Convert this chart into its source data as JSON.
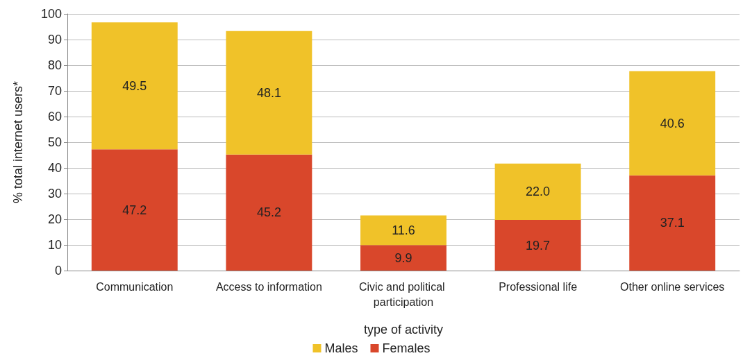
{
  "chart_data": {
    "type": "bar",
    "stacked": true,
    "xlabel": "type of activity",
    "ylabel": "% total internet users*",
    "categories": [
      "Communication",
      "Access to information",
      "Civic and political participation",
      "Professional life",
      "Other online services"
    ],
    "series": [
      {
        "name": "Females",
        "color": "#d9472b",
        "values": [
          47.2,
          45.2,
          9.9,
          19.7,
          37.1
        ],
        "value_labels": [
          "47.2",
          "45.2",
          "9.9",
          "19.7",
          "37.1"
        ]
      },
      {
        "name": "Males",
        "color": "#f0c229",
        "values": [
          49.5,
          48.1,
          11.6,
          22.0,
          40.6
        ],
        "value_labels": [
          "49.5",
          "48.1",
          "11.6",
          "22.0",
          "40.6"
        ]
      }
    ],
    "ylim": [
      0,
      100
    ],
    "yticks": [
      0,
      10,
      20,
      30,
      40,
      50,
      60,
      70,
      80,
      90,
      100
    ],
    "grid": "y",
    "legend": "bottom"
  }
}
